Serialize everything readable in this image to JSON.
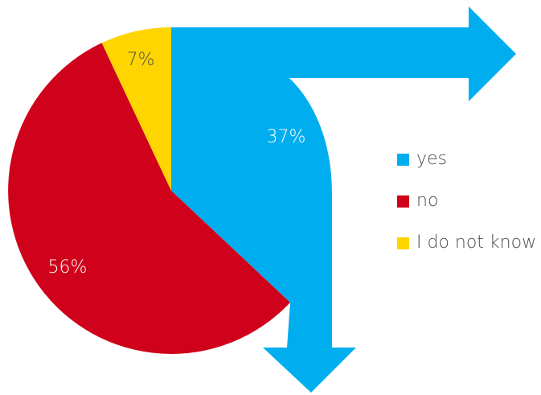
{
  "chart_data": {
    "type": "pie",
    "title": "",
    "categories": [
      "yes",
      "no",
      "I do not know"
    ],
    "values": [
      37,
      56,
      7
    ],
    "value_labels": [
      "37%",
      "56%",
      "7%"
    ],
    "colors": [
      "#00aeef",
      "#d0021b",
      "#ffd500"
    ],
    "start_angle_deg": 0,
    "direction": "clockwise",
    "legend_position": "right",
    "yes_slice_style": "bent-arrow"
  },
  "legend": {
    "items": [
      {
        "label": "yes",
        "color": "#00aeef"
      },
      {
        "label": "no",
        "color": "#d0021b"
      },
      {
        "label": "I do not know",
        "color": "#ffd500"
      }
    ]
  }
}
